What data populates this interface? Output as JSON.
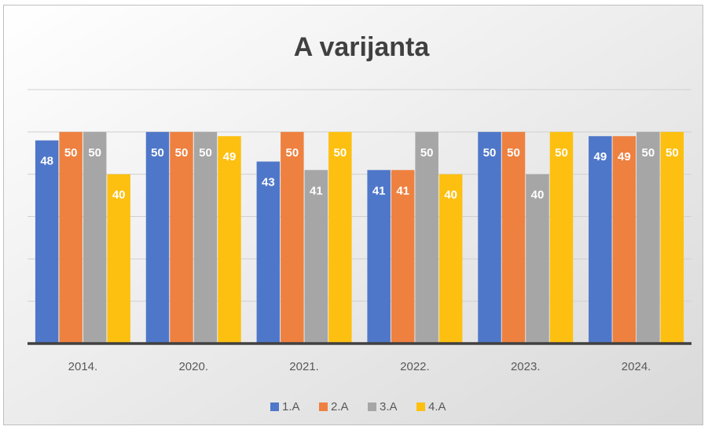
{
  "chart_data": {
    "type": "bar",
    "title": "A varijanta",
    "categories": [
      "2014.",
      "2020.",
      "2021.",
      "2022.",
      "2023.",
      "2024."
    ],
    "series": [
      {
        "name": "1.A",
        "color": "#4f77c9",
        "values": [
          48,
          50,
          43,
          41,
          50,
          49
        ]
      },
      {
        "name": "2.A",
        "color": "#ee8140",
        "values": [
          50,
          50,
          50,
          41,
          50,
          49
        ]
      },
      {
        "name": "3.A",
        "color": "#a6a6a6",
        "values": [
          50,
          50,
          41,
          50,
          40,
          50
        ]
      },
      {
        "name": "4.A",
        "color": "#fdc010",
        "values": [
          40,
          49,
          50,
          40,
          50,
          50
        ]
      }
    ],
    "ylim": [
      0,
      60
    ],
    "yticks": [
      0,
      10,
      20,
      30,
      40,
      50,
      60
    ],
    "grid": true,
    "legend": "bottom"
  }
}
